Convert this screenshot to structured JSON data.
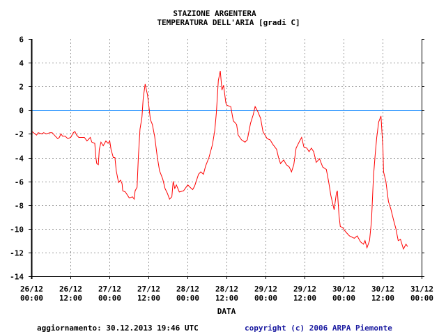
{
  "chart_data": {
    "type": "line",
    "title": "STAZIONE ARGENTERA",
    "subtitle": "TEMPERATURA DELL'ARIA [gradi C]",
    "xlabel": "DATA",
    "ylabel": "",
    "x_unit": "hours since 26/12 00:00",
    "xlim": [
      0,
      120
    ],
    "ylim": [
      -14,
      6
    ],
    "grid": true,
    "y_ticks": [
      6,
      4,
      2,
      0,
      -2,
      -4,
      -6,
      -8,
      -10,
      -12,
      -14
    ],
    "x_ticks": [
      {
        "x": 0,
        "date": "26/12",
        "time": "00:00"
      },
      {
        "x": 12,
        "date": "26/12",
        "time": "12:00"
      },
      {
        "x": 24,
        "date": "27/12",
        "time": "00:00"
      },
      {
        "x": 36,
        "date": "27/12",
        "time": "12:00"
      },
      {
        "x": 48,
        "date": "28/12",
        "time": "00:00"
      },
      {
        "x": 60,
        "date": "28/12",
        "time": "12:00"
      },
      {
        "x": 72,
        "date": "29/12",
        "time": "00:00"
      },
      {
        "x": 84,
        "date": "29/12",
        "time": "12:00"
      },
      {
        "x": 96,
        "date": "30/12",
        "time": "00:00"
      },
      {
        "x": 108,
        "date": "30/12",
        "time": "12:00"
      },
      {
        "x": 120,
        "date": "31/12",
        "time": "00:00"
      }
    ],
    "reference_line": {
      "y": 0,
      "color": "#0080ff"
    },
    "series": [
      {
        "name": "Temperatura",
        "color": "#ff0000",
        "points": [
          [
            0.2,
            -1.8
          ],
          [
            1.6,
            -2.1
          ],
          [
            2.1,
            -1.9
          ],
          [
            3.2,
            -2.0
          ],
          [
            3.8,
            -1.9
          ],
          [
            4.6,
            -2.0
          ],
          [
            5.7,
            -1.9
          ],
          [
            6.4,
            -1.9
          ],
          [
            7.4,
            -2.2
          ],
          [
            8.1,
            -2.4
          ],
          [
            8.6,
            -2.3
          ],
          [
            9.1,
            -2.0
          ],
          [
            9.6,
            -2.2
          ],
          [
            10.4,
            -2.2
          ],
          [
            11.2,
            -2.4
          ],
          [
            12.1,
            -2.3
          ],
          [
            12.9,
            -1.9
          ],
          [
            13.4,
            -1.8
          ],
          [
            13.9,
            -2.1
          ],
          [
            14.6,
            -2.3
          ],
          [
            16.3,
            -2.3
          ],
          [
            17.1,
            -2.6
          ],
          [
            18.1,
            -2.3
          ],
          [
            18.6,
            -2.7
          ],
          [
            19.5,
            -2.8
          ],
          [
            19.8,
            -3.9
          ],
          [
            20.1,
            -4.5
          ],
          [
            20.6,
            -4.6
          ],
          [
            20.9,
            -3.3
          ],
          [
            21.4,
            -2.7
          ],
          [
            22.1,
            -3.0
          ],
          [
            22.9,
            -2.6
          ],
          [
            23.6,
            -2.8
          ],
          [
            24.1,
            -2.6
          ],
          [
            24.5,
            -3.3
          ],
          [
            25.2,
            -4.0
          ],
          [
            25.7,
            -4.0
          ],
          [
            26.1,
            -5.1
          ],
          [
            26.8,
            -6.1
          ],
          [
            27.4,
            -5.9
          ],
          [
            27.9,
            -6.2
          ],
          [
            28.1,
            -6.8
          ],
          [
            28.9,
            -6.9
          ],
          [
            30.1,
            -7.4
          ],
          [
            31.1,
            -7.3
          ],
          [
            31.6,
            -7.5
          ],
          [
            31.9,
            -6.8
          ],
          [
            32.5,
            -6.5
          ],
          [
            32.9,
            -4.0
          ],
          [
            33.4,
            -1.6
          ],
          [
            34.0,
            -0.6
          ],
          [
            34.4,
            1.0
          ],
          [
            35.0,
            2.2
          ],
          [
            35.7,
            1.3
          ],
          [
            36.1,
            0.4
          ],
          [
            36.6,
            -0.8
          ],
          [
            37.2,
            -1.2
          ],
          [
            37.9,
            -2.2
          ],
          [
            38.7,
            -3.9
          ],
          [
            39.4,
            -5.1
          ],
          [
            40.4,
            -5.8
          ],
          [
            41.1,
            -6.6
          ],
          [
            41.8,
            -7.0
          ],
          [
            42.5,
            -7.5
          ],
          [
            43.2,
            -7.3
          ],
          [
            43.6,
            -6.0
          ],
          [
            44.1,
            -6.6
          ],
          [
            44.6,
            -6.3
          ],
          [
            45.5,
            -6.9
          ],
          [
            46.8,
            -6.8
          ],
          [
            48.1,
            -6.3
          ],
          [
            48.8,
            -6.5
          ],
          [
            49.6,
            -6.7
          ],
          [
            50.2,
            -6.4
          ],
          [
            51.4,
            -5.4
          ],
          [
            52.1,
            -5.2
          ],
          [
            52.9,
            -5.4
          ],
          [
            53.6,
            -4.7
          ],
          [
            54.6,
            -4.0
          ],
          [
            55.7,
            -2.9
          ],
          [
            56.4,
            -1.7
          ],
          [
            56.9,
            -0.2
          ],
          [
            57.5,
            2.5
          ],
          [
            58.1,
            3.3
          ],
          [
            58.6,
            1.7
          ],
          [
            59.1,
            2.1
          ],
          [
            59.8,
            0.6
          ],
          [
            60.2,
            0.4
          ],
          [
            61.3,
            0.3
          ],
          [
            62.1,
            -0.9
          ],
          [
            63.1,
            -1.2
          ],
          [
            63.6,
            -2.1
          ],
          [
            64.6,
            -2.5
          ],
          [
            65.7,
            -2.7
          ],
          [
            66.4,
            -2.5
          ],
          [
            67.4,
            -1.1
          ],
          [
            68.2,
            -0.4
          ],
          [
            68.8,
            0.3
          ],
          [
            69.6,
            -0.1
          ],
          [
            70.5,
            -0.7
          ],
          [
            71.2,
            -1.8
          ],
          [
            72.5,
            -2.4
          ],
          [
            73.4,
            -2.5
          ],
          [
            74.3,
            -2.9
          ],
          [
            75.4,
            -3.3
          ],
          [
            76.0,
            -4.0
          ],
          [
            76.6,
            -4.5
          ],
          [
            77.6,
            -4.2
          ],
          [
            78.4,
            -4.6
          ],
          [
            79.3,
            -4.8
          ],
          [
            80.0,
            -5.2
          ],
          [
            80.7,
            -4.6
          ],
          [
            81.4,
            -3.2
          ],
          [
            82.5,
            -2.6
          ],
          [
            83.1,
            -2.3
          ],
          [
            83.8,
            -3.1
          ],
          [
            84.7,
            -3.2
          ],
          [
            85.4,
            -3.5
          ],
          [
            86.1,
            -3.2
          ],
          [
            86.8,
            -3.5
          ],
          [
            87.6,
            -4.4
          ],
          [
            88.6,
            -4.1
          ],
          [
            89.6,
            -4.8
          ],
          [
            90.7,
            -5.0
          ],
          [
            91.4,
            -6.0
          ],
          [
            92.1,
            -7.2
          ],
          [
            93.1,
            -8.4
          ],
          [
            93.8,
            -7.0
          ],
          [
            94.1,
            -6.8
          ],
          [
            94.6,
            -8.9
          ],
          [
            95.0,
            -9.8
          ],
          [
            95.7,
            -9.9
          ],
          [
            96.8,
            -10.3
          ],
          [
            97.8,
            -10.6
          ],
          [
            99.3,
            -10.8
          ],
          [
            100.2,
            -10.6
          ],
          [
            101.2,
            -11.1
          ],
          [
            102.1,
            -11.3
          ],
          [
            102.6,
            -11.0
          ],
          [
            103.2,
            -11.6
          ],
          [
            104.0,
            -11.0
          ],
          [
            104.6,
            -9.3
          ],
          [
            105.2,
            -5.6
          ],
          [
            105.7,
            -3.8
          ],
          [
            106.2,
            -2.3
          ],
          [
            106.8,
            -1.0
          ],
          [
            107.5,
            -0.5
          ],
          [
            108.1,
            -3.2
          ],
          [
            108.3,
            -5.2
          ],
          [
            109.0,
            -6.0
          ],
          [
            109.8,
            -7.7
          ],
          [
            110.5,
            -8.3
          ],
          [
            111.4,
            -9.3
          ],
          [
            112.1,
            -10.0
          ],
          [
            112.8,
            -11.0
          ],
          [
            113.5,
            -10.9
          ],
          [
            114.4,
            -11.7
          ],
          [
            115.2,
            -11.3
          ],
          [
            115.7,
            -11.5
          ]
        ]
      }
    ]
  },
  "footer": {
    "updated": "aggiornamento: 30.12.2013 19:46 UTC",
    "copyright": "copyright (c) 2006 ARPA Piemonte",
    "copyright_color": "#1a1aa0"
  }
}
